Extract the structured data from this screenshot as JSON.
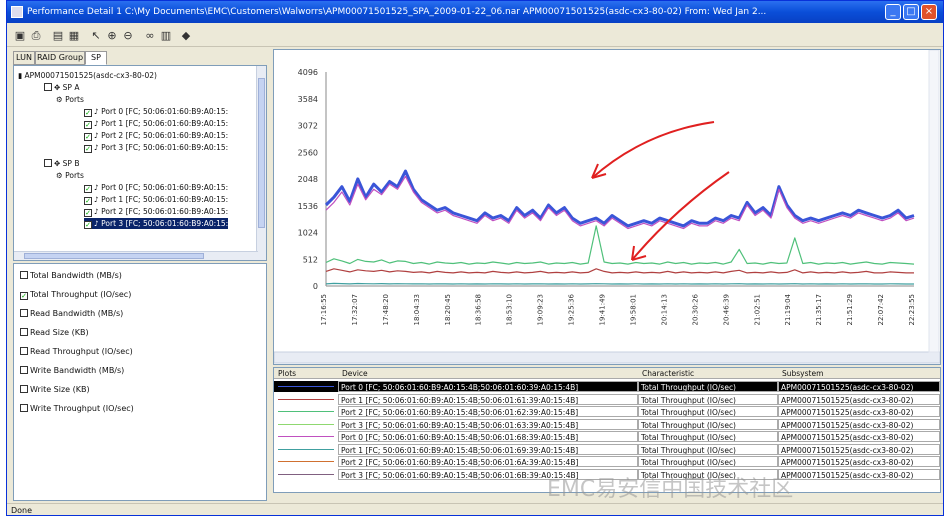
{
  "window": {
    "title": "Performance Detail 1  C:\\My Documents\\EMC\\Customers\\Walworrs\\APM00071501525_SPA_2009-01-22_06.nar    APM00071501525(asdc-cx3-80-02) From: Wed Jan 2...",
    "minimize": "_",
    "maximize": "□",
    "close": "×"
  },
  "toolbar": [
    "save-icon",
    "print-icon",
    "disk-icon",
    "copy-icon",
    "pointer-icon",
    "zoom-in-icon",
    "zoom-out-icon",
    "link-icon",
    "table-icon",
    "settings-icon"
  ],
  "tabs": [
    "LUN",
    "RAID Group",
    "SP"
  ],
  "tree": {
    "root": "APM00071501525(asdc-cx3-80-02)",
    "sp_a": "SP A",
    "sp_b": "SP B",
    "ports_label": "Ports",
    "sp_a_ports": [
      "Port 0 [FC; 50:06:01:60:B9:A0:15:",
      "Port 1 [FC; 50:06:01:60:B9:A0:15:",
      "Port 2 [FC; 50:06:01:60:B9:A0:15:",
      "Port 3 [FC; 50:06:01:60:B9:A0:15:"
    ],
    "sp_b_ports": [
      "Port 0 [FC; 50:06:01:60:B9:A0:15:",
      "Port 1 [FC; 50:06:01:60:B9:A0:15:",
      "Port 2 [FC; 50:06:01:60:B9:A0:15:",
      "Port 3 [FC; 50:06:01:60:B9:A0:15:"
    ]
  },
  "characteristics": [
    {
      "label": "Total Bandwidth (MB/s)",
      "checked": false
    },
    {
      "label": "Total Throughput (IO/sec)",
      "checked": true
    },
    {
      "label": "Read Bandwidth (MB/s)",
      "checked": false
    },
    {
      "label": "Read Size (KB)",
      "checked": false
    },
    {
      "label": "Read Throughput (IO/sec)",
      "checked": false
    },
    {
      "label": "Write Bandwidth (MB/s)",
      "checked": false
    },
    {
      "label": "Write Size (KB)",
      "checked": false
    },
    {
      "label": "Write Throughput (IO/sec)",
      "checked": false
    }
  ],
  "chart_data": {
    "type": "line",
    "title": "",
    "xlabel": "",
    "ylabel": "",
    "ylim": [
      0,
      4096
    ],
    "yticks": [
      "4096",
      "3584",
      "3072",
      "2560",
      "2048",
      "1536",
      "1024",
      "512",
      "0"
    ],
    "xticks": [
      "17:16:55",
      "17:32:07",
      "17:48:20",
      "18:04:33",
      "18:20:45",
      "18:36:58",
      "18:53:10",
      "19:09:23",
      "19:25:36",
      "19:41:49",
      "19:58:01",
      "20:14:13",
      "20:30:26",
      "20:46:39",
      "21:02:51",
      "21:19:04",
      "21:35:17",
      "21:51:29",
      "22:07:42",
      "22:23:55"
    ],
    "grid": false,
    "series": [
      {
        "color": "#3a55d8",
        "values": [
          1550,
          1700,
          1900,
          1620,
          2050,
          1700,
          1950,
          1800,
          2000,
          1900,
          2200,
          1850,
          1650,
          1550,
          1450,
          1500,
          1400,
          1350,
          1300,
          1250,
          1400,
          1300,
          1350,
          1250,
          1500,
          1350,
          1450,
          1300,
          1550,
          1400,
          1500,
          1300,
          1200,
          1250,
          1300,
          1200,
          1350,
          1250,
          1150,
          1200,
          1250,
          1200,
          1300,
          1250,
          1200,
          1150,
          1250,
          1200,
          1200,
          1300,
          1250,
          1350,
          1300,
          1600,
          1400,
          1500,
          1350,
          1900,
          1550,
          1350,
          1250,
          1300,
          1250,
          1300,
          1350,
          1400,
          1350,
          1450,
          1400,
          1350,
          1300,
          1350,
          1450,
          1300,
          1350
        ]
      },
      {
        "color": "#c050c0",
        "values": [
          1450,
          1600,
          1800,
          1550,
          1950,
          1650,
          1850,
          1750,
          1950,
          1850,
          2100,
          1800,
          1600,
          1500,
          1400,
          1450,
          1350,
          1300,
          1250,
          1200,
          1350,
          1250,
          1300,
          1200,
          1450,
          1300,
          1400,
          1250,
          1500,
          1350,
          1450,
          1250,
          1150,
          1200,
          1250,
          1150,
          1300,
          1200,
          1100,
          1150,
          1200,
          1150,
          1250,
          1200,
          1150,
          1100,
          1200,
          1150,
          1150,
          1250,
          1200,
          1300,
          1250,
          1550,
          1350,
          1450,
          1300,
          1850,
          1500,
          1300,
          1200,
          1250,
          1200,
          1250,
          1300,
          1350,
          1300,
          1400,
          1350,
          1300,
          1250,
          1300,
          1400,
          1250,
          1300
        ]
      },
      {
        "color": "#4fc07a",
        "values": [
          450,
          520,
          480,
          430,
          510,
          470,
          460,
          500,
          440,
          480,
          470,
          430,
          450,
          420,
          460,
          440,
          430,
          450,
          420,
          440,
          430,
          460,
          440,
          420,
          450,
          430,
          440,
          460,
          420,
          440,
          430,
          450,
          420,
          440,
          1150,
          460,
          430,
          440,
          420,
          450,
          430,
          440,
          420,
          460,
          430,
          450,
          420,
          440,
          430,
          450,
          420,
          460,
          700,
          430,
          440,
          420,
          450,
          430,
          440,
          920,
          430,
          450,
          420,
          440,
          430,
          450,
          420,
          440,
          460,
          430,
          420,
          450,
          440,
          430,
          420
        ]
      },
      {
        "color": "#b04040",
        "values": [
          280,
          330,
          300,
          270,
          310,
          290,
          280,
          300,
          270,
          290,
          280,
          260,
          270,
          250,
          280,
          260,
          250,
          270,
          250,
          260,
          250,
          280,
          260,
          250,
          270,
          250,
          260,
          280,
          250,
          260,
          250,
          270,
          250,
          260,
          330,
          280,
          250,
          260,
          250,
          270,
          250,
          260,
          250,
          280,
          250,
          270,
          250,
          260,
          250,
          270,
          250,
          280,
          300,
          250,
          260,
          250,
          270,
          250,
          260,
          310,
          250,
          270,
          250,
          260,
          250,
          270,
          250,
          260,
          280,
          250,
          250,
          270,
          260,
          250,
          250
        ]
      },
      {
        "color": "#40a0a0",
        "values": [
          40,
          50,
          45,
          40,
          48,
          44,
          42,
          46,
          40,
          44,
          42,
          40,
          42,
          38,
          42,
          40,
          38,
          42,
          38,
          40,
          38,
          42,
          40,
          38,
          42,
          38,
          40,
          42,
          38,
          40,
          38,
          42,
          38,
          40,
          44,
          42,
          38,
          40,
          38,
          42,
          38,
          40,
          38,
          42,
          38,
          42,
          38,
          40,
          38,
          42,
          38,
          42,
          44,
          38,
          40,
          38,
          42,
          38,
          40,
          44,
          38,
          42,
          38,
          40,
          38,
          42,
          38,
          40,
          42,
          38,
          38,
          42,
          40,
          38,
          38
        ]
      }
    ]
  },
  "legend": {
    "headers": {
      "plots": "Plots",
      "device": "Device",
      "characteristic": "Characteristic",
      "subsystem": "Subsystem"
    },
    "rows": [
      {
        "color": "#3a55d8",
        "device": "Port 0 [FC; 50:06:01:60:B9:A0:15:4B;50:06:01:60:39:A0:15:4B]",
        "characteristic": "Total Throughput (IO/sec)",
        "subsystem": "APM00071501525(asdc-cx3-80-02)"
      },
      {
        "color": "#b04040",
        "device": "Port 1 [FC; 50:06:01:60:B9:A0:15:4B;50:06:01:61:39:A0:15:4B]",
        "characteristic": "Total Throughput (IO/sec)",
        "subsystem": "APM00071501525(asdc-cx3-80-02)"
      },
      {
        "color": "#4fc07a",
        "device": "Port 2 [FC; 50:06:01:60:B9:A0:15:4B;50:06:01:62:39:A0:15:4B]",
        "characteristic": "Total Throughput (IO/sec)",
        "subsystem": "APM00071501525(asdc-cx3-80-02)"
      },
      {
        "color": "#8fd870",
        "device": "Port 3 [FC; 50:06:01:60:B9:A0:15:4B;50:06:01:63:39:A0:15:4B]",
        "characteristic": "Total Throughput (IO/sec)",
        "subsystem": "APM00071501525(asdc-cx3-80-02)"
      },
      {
        "color": "#c050c0",
        "device": "Port 0 [FC; 50:06:01:60:B9:A0:15:4B;50:06:01:68:39:A0:15:4B]",
        "characteristic": "Total Throughput (IO/sec)",
        "subsystem": "APM00071501525(asdc-cx3-80-02)"
      },
      {
        "color": "#40a0a0",
        "device": "Port 1 [FC; 50:06:01:60:B9:A0:15:4B;50:06:01:69:39:A0:15:4B]",
        "characteristic": "Total Throughput (IO/sec)",
        "subsystem": "APM00071501525(asdc-cx3-80-02)"
      },
      {
        "color": "#d07030",
        "device": "Port 2 [FC; 50:06:01:60:B9:A0:15:4B;50:06:01:6A:39:A0:15:4B]",
        "characteristic": "Total Throughput (IO/sec)",
        "subsystem": "APM00071501525(asdc-cx3-80-02)"
      },
      {
        "color": "#806080",
        "device": "Port 3 [FC; 50:06:01:60:B9:A0:15:4B;50:06:01:6B:39:A0:15:4B]",
        "characteristic": "Total Throughput (IO/sec)",
        "subsystem": "APM00071501525(asdc-cx3-80-02)"
      }
    ]
  },
  "status": "Done",
  "watermark": "EMC易安信中国技术社区"
}
